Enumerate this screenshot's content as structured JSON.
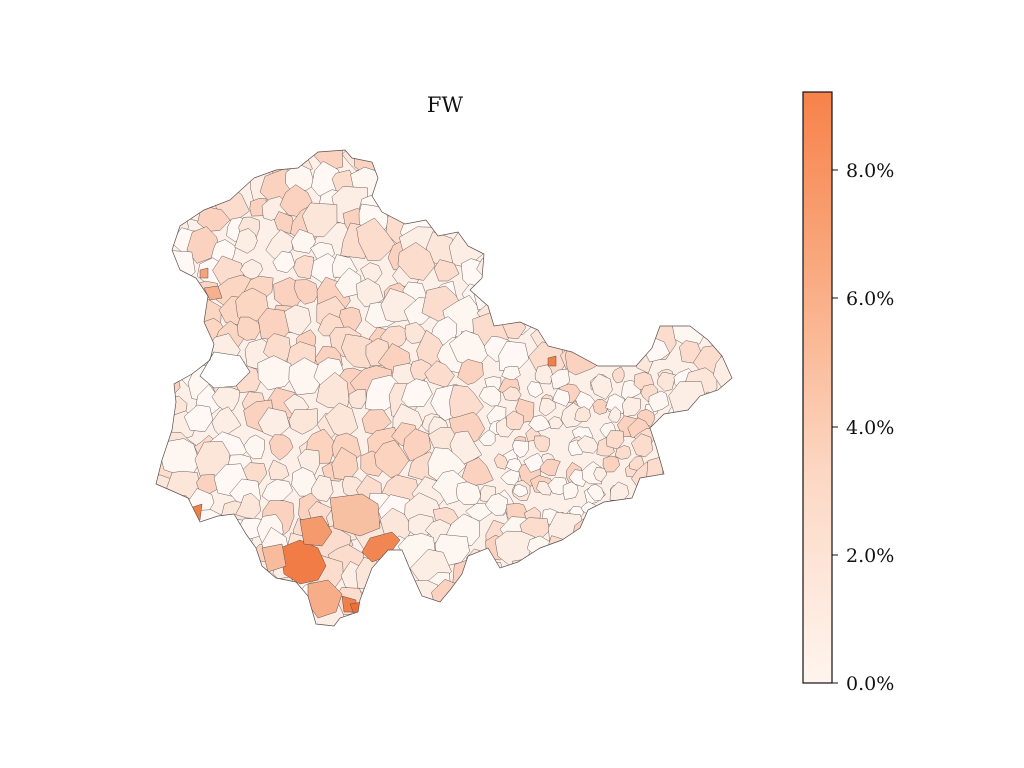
{
  "title": "FW",
  "colorbar": {
    "tick_labels": [
      "0.0%",
      "2.0%",
      "4.0%",
      "6.0%",
      "8.0%"
    ],
    "tick_values": [
      0,
      2,
      4,
      6,
      8
    ],
    "min": 0,
    "max": 9.2,
    "color_low": "#fff5ee",
    "color_high": "#f7824a"
  },
  "map": {
    "fill_base": "#fdf1ea",
    "border_color": "#5a4f4f",
    "highlight_colors": [
      "#f08c5c",
      "#f5a27b",
      "#f9c4a9"
    ]
  }
}
